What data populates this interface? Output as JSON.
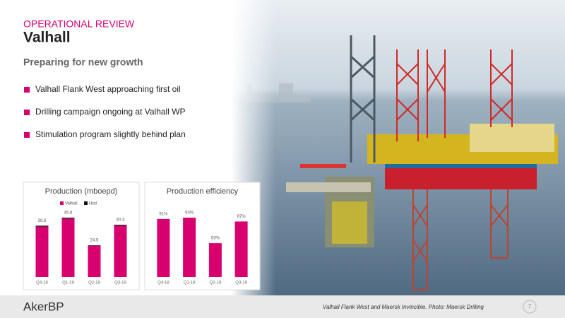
{
  "header": {
    "section": "OPERATIONAL REVIEW",
    "title": "Valhall",
    "subtitle": "Preparing for new growth"
  },
  "bullets": [
    "Valhall Flank West approaching first oil",
    "Drilling campaign ongoing at Valhall WP",
    "Stimulation program slightly behind plan"
  ],
  "chart_data": [
    {
      "type": "bar",
      "stacked": true,
      "title": "Production (mboepd)",
      "categories": [
        "Q4-18",
        "Q1-19",
        "Q2-19",
        "Q3-19"
      ],
      "series": [
        {
          "name": "Valhall",
          "color": "#d8006f",
          "values": [
            38.9,
            45.1,
            24.2,
            39.6
          ]
        },
        {
          "name": "Hod",
          "color": "#111111",
          "values": [
            0.7,
            0.7,
            0.3,
            0.7
          ]
        }
      ],
      "totals": [
        39.6,
        45.8,
        24.5,
        40.3
      ],
      "legend": "top"
    },
    {
      "type": "bar",
      "title": "Production efficiency",
      "categories": [
        "Q4-18",
        "Q1-19",
        "Q2-19",
        "Q3-19"
      ],
      "values": [
        91,
        93,
        53,
        87
      ],
      "value_labels": [
        "91%",
        "93%",
        "53%",
        "87%"
      ],
      "color": "#d8006f"
    }
  ],
  "footer": {
    "logo": "AkerBP",
    "caption": "Valhall Flank West and Maersk Invincible. Photo: Maersk Drilling",
    "page": "7"
  }
}
